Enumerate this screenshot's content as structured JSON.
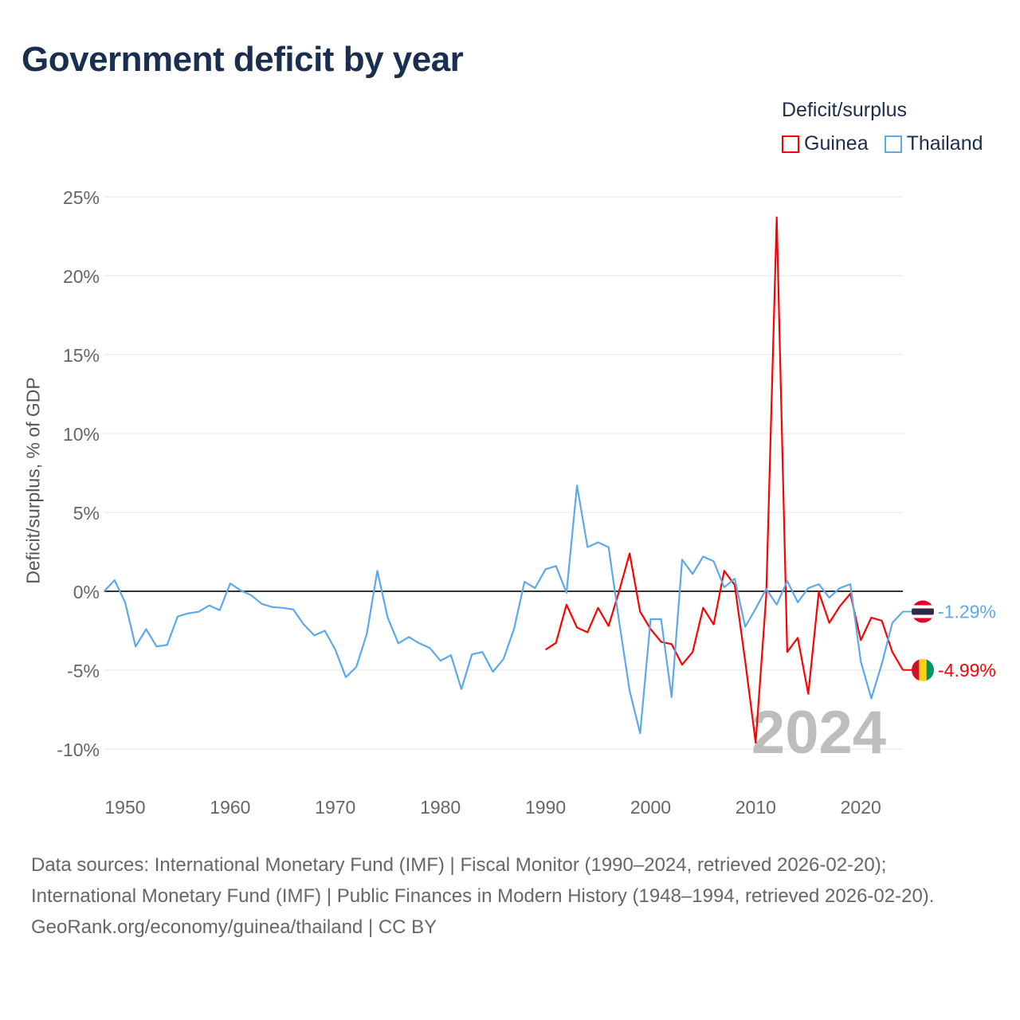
{
  "title": "Government deficit by year",
  "legend": {
    "title": "Deficit/surplus",
    "items": [
      {
        "name": "Guinea",
        "color": "#ff0000"
      },
      {
        "name": "Thailand",
        "color": "#5ca8ec"
      }
    ]
  },
  "year_watermark": "2024",
  "end_labels": {
    "thailand": "-1.29%",
    "guinea": "-4.99%"
  },
  "footer": {
    "sources": "Data sources: International Monetary Fund (IMF) | Fiscal Monitor (1990–2024, retrieved 2026-02-20); International Monetary Fund (IMF) | Public Finances in Modern History (1948–1994, retrieved 2026-02-20).",
    "credit": "GeoRank.org/economy/guinea/thailand | CC BY"
  },
  "chart_data": {
    "type": "line",
    "title": "Government deficit by year",
    "xlabel": "",
    "ylabel": "Deficit/surplus, % of GDP",
    "xlim": [
      1948,
      2024
    ],
    "ylim": [
      -10,
      25
    ],
    "xticks": [
      1950,
      1960,
      1970,
      1980,
      1990,
      2000,
      2010,
      2020
    ],
    "yticks": [
      {
        "v": 25,
        "label": "25%"
      },
      {
        "v": 20,
        "label": "20%"
      },
      {
        "v": 15,
        "label": "15%"
      },
      {
        "v": 10,
        "label": "10%"
      },
      {
        "v": 5,
        "label": "5%"
      },
      {
        "v": 0,
        "label": "0%"
      },
      {
        "v": -5,
        "label": "-5%"
      },
      {
        "v": -10,
        "label": "-10%"
      }
    ],
    "grid": true,
    "legend_position": "top-right",
    "series": [
      {
        "name": "Thailand",
        "color": "#5ca8ec",
        "start_year": 1948,
        "values": [
          0,
          0.7,
          -0.7,
          -3.5,
          -2.4,
          -3.5,
          -3.4,
          -1.6,
          -1.4,
          -1.3,
          -0.9,
          -1.2,
          0.5,
          0.05,
          -0.25,
          -0.8,
          -1.0,
          -1.05,
          -1.15,
          -2.1,
          -2.8,
          -2.5,
          -3.7,
          -5.45,
          -4.8,
          -2.7,
          1.3,
          -1.7,
          -3.3,
          -2.9,
          -3.3,
          -3.6,
          -4.4,
          -4.05,
          -6.2,
          -4.0,
          -3.85,
          -5.1,
          -4.3,
          -2.4,
          0.6,
          0.2,
          1.4,
          1.6,
          -0.1,
          6.7,
          2.8,
          3.1,
          2.8,
          -1.9,
          -6.3,
          -9.0,
          -1.77,
          -1.77,
          -6.7,
          2.0,
          1.1,
          2.2,
          1.9,
          0.25,
          0.8,
          -2.25,
          -1.1,
          0.15,
          -0.85,
          0.65,
          -0.7,
          0.2,
          0.45,
          -0.4,
          0.2,
          0.45,
          -4.45,
          -6.8,
          -4.6,
          -2.0,
          -1.29
        ]
      },
      {
        "name": "Guinea",
        "color": "#ff0000",
        "start_year": 1990,
        "values": [
          -3.7,
          -3.27,
          -0.85,
          -2.3,
          -2.6,
          -1.05,
          -2.2,
          0.0,
          2.4,
          -1.3,
          -2.4,
          -3.2,
          -3.35,
          -4.65,
          -3.85,
          -1.05,
          -2.1,
          1.3,
          0.4,
          -4.45,
          -9.6,
          -0.3,
          23.7,
          -3.85,
          -2.95,
          -6.5,
          -0.05,
          -2.0,
          -0.95,
          -0.15,
          -3.1,
          -1.67,
          -1.87,
          -3.85,
          -4.99
        ]
      }
    ]
  }
}
